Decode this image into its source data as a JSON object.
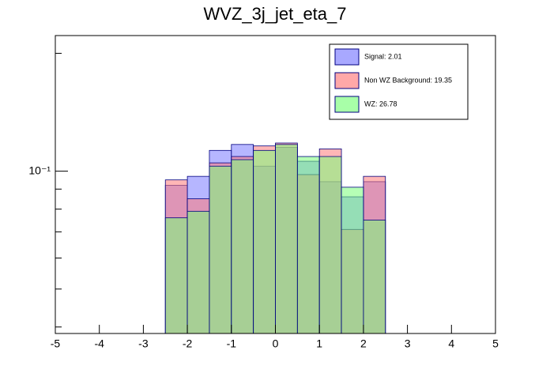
{
  "chart_data": {
    "type": "histogram",
    "title": "WVZ_3j_jet_eta_7",
    "bins": [
      -2.5,
      -2,
      -1.5,
      -1,
      -0.5,
      0,
      0.5,
      1,
      1.5,
      2,
      2.5
    ],
    "series": [
      {
        "name": "Signal: 2.01",
        "color": "#7a7aff",
        "values": [
          0.092,
          0.097,
          0.113,
          0.117,
          0.103,
          0.115,
          0.106,
          0.094,
          0.086,
          0.094
        ]
      },
      {
        "name": "Non WZ Background: 19.35",
        "color": "#ff7a7a",
        "values": [
          0.095,
          0.085,
          0.105,
          0.109,
          0.116,
          0.118,
          0.098,
          0.114,
          0.071,
          0.097
        ]
      },
      {
        "name": "WZ: 26.78",
        "color": "#7aff7a",
        "values": [
          0.076,
          0.079,
          0.103,
          0.107,
          0.113,
          0.117,
          0.109,
          0.109,
          0.091,
          0.075
        ]
      }
    ],
    "xlim": [
      -5,
      5
    ],
    "xticks": [
      -5,
      -4,
      -3,
      -2,
      -1,
      0,
      1,
      2,
      3,
      4,
      5
    ],
    "ylim": [
      0.0385,
      0.222
    ],
    "yticks": [
      {
        "value": 0.1,
        "label": "10⁻¹"
      }
    ],
    "yminor": [
      0.04,
      0.05,
      0.06,
      0.07,
      0.08,
      0.09,
      0.2
    ],
    "logy": true,
    "legend": "top-right"
  }
}
